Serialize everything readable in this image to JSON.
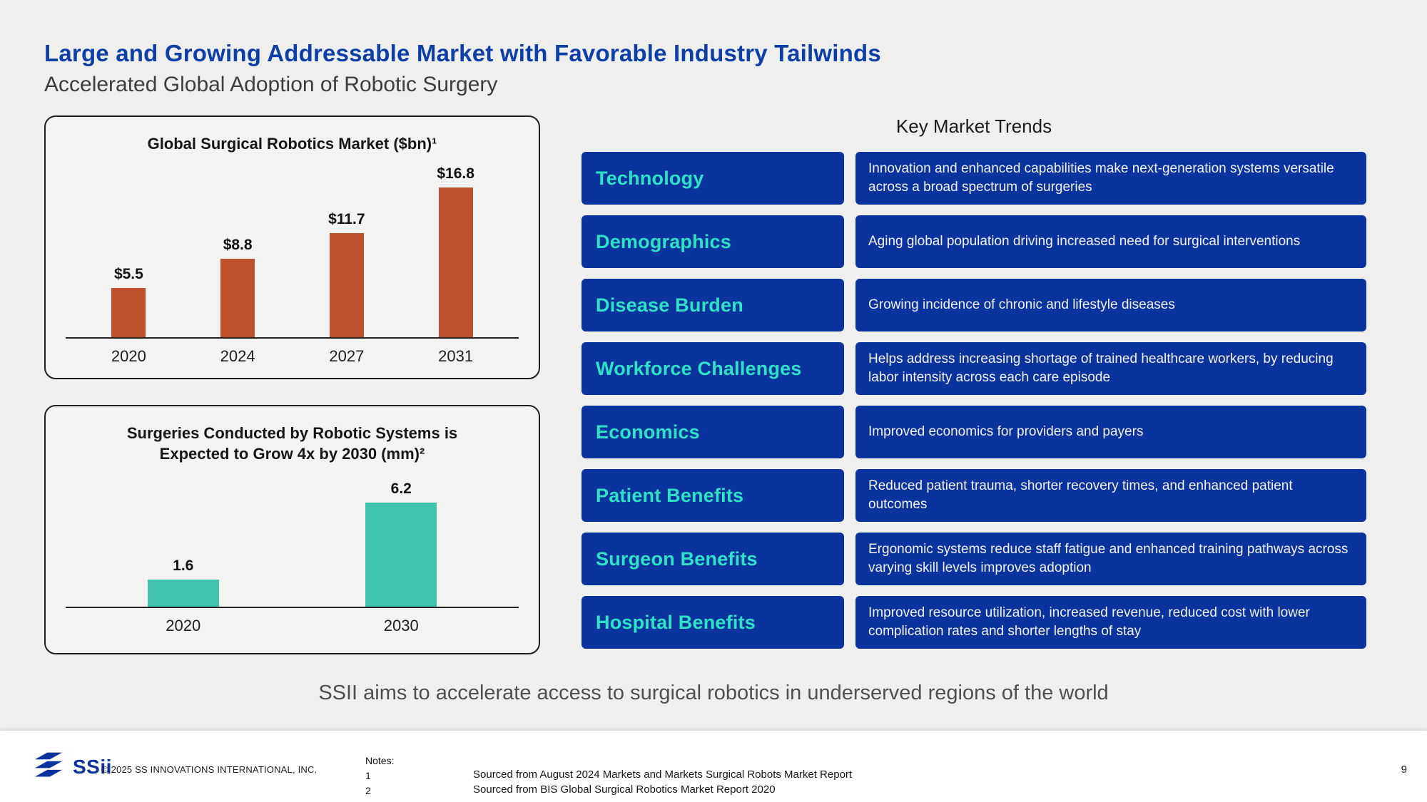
{
  "slide": {
    "title": "Large and Growing Addressable Market with Favorable Industry Tailwinds",
    "subtitle": "Accelerated Global Adoption of Robotic Surgery",
    "tagline": "SSII aims to accelerate access to surgical robotics in underserved regions of the world"
  },
  "chart_data": [
    {
      "type": "bar",
      "title": "Global Surgical Robotics Market ($bn)¹",
      "categories": [
        "2020",
        "2024",
        "2027",
        "2031"
      ],
      "values": [
        5.5,
        8.8,
        11.7,
        16.8
      ],
      "value_labels": [
        "$5.5",
        "$8.8",
        "$11.7",
        "$16.8"
      ],
      "ylim": [
        0,
        18
      ],
      "xlabel": "",
      "ylabel": "",
      "bar_color": "#c0512d",
      "grid": false,
      "legend": "none"
    },
    {
      "type": "bar",
      "title": "Surgeries Conducted by Robotic Systems is Expected to Grow 4x by 2030 (mm)²",
      "categories": [
        "2020",
        "2030"
      ],
      "values": [
        1.6,
        6.2
      ],
      "value_labels": [
        "1.6",
        "6.2"
      ],
      "ylim": [
        0,
        7
      ],
      "xlabel": "",
      "ylabel": "",
      "bar_color": "#41c2ac",
      "grid": false,
      "legend": "none"
    }
  ],
  "trends": {
    "header": "Key Market Trends",
    "items": [
      {
        "label": "Technology",
        "description": "Innovation and enhanced capabilities make next-generation systems versatile across a broad spectrum of surgeries"
      },
      {
        "label": "Demographics",
        "description": "Aging global population driving increased need for surgical interventions"
      },
      {
        "label": "Disease Burden",
        "description": "Growing incidence of chronic and lifestyle diseases"
      },
      {
        "label": "Workforce Challenges",
        "description": "Helps address increasing shortage of trained healthcare workers, by reducing labor intensity across each care episode"
      },
      {
        "label": "Economics",
        "description": "Improved economics for providers and payers"
      },
      {
        "label": "Patient Benefits",
        "description": "Reduced patient trauma, shorter recovery times, and enhanced patient outcomes"
      },
      {
        "label": "Surgeon Benefits",
        "description": "Ergonomic systems reduce staff fatigue and enhanced training pathways across varying skill levels improves adoption"
      },
      {
        "label": "Hospital Benefits",
        "description": "Improved resource utilization, increased revenue, reduced cost with lower complication rates and shorter lengths of stay"
      }
    ]
  },
  "footer": {
    "logo_text": "SSii",
    "copyright": "© 2025 SS INNOVATIONS INTERNATIONAL, INC.",
    "notes_label": "Notes:",
    "notes": [
      {
        "num": "1",
        "text": "Sourced from August 2024 Markets and Markets Surgical Robots Market Report"
      },
      {
        "num": "2",
        "text": "Sourced from BIS Global Surgical Robotics Market Report 2020"
      }
    ],
    "page_number": "9"
  },
  "colors": {
    "title_blue": "#0d3fa8",
    "pill_blue": "#0b339e",
    "teal_label": "#2ee3c4",
    "bar_orange": "#c0512d",
    "bar_teal": "#41c2ac",
    "background": "#efefee"
  }
}
